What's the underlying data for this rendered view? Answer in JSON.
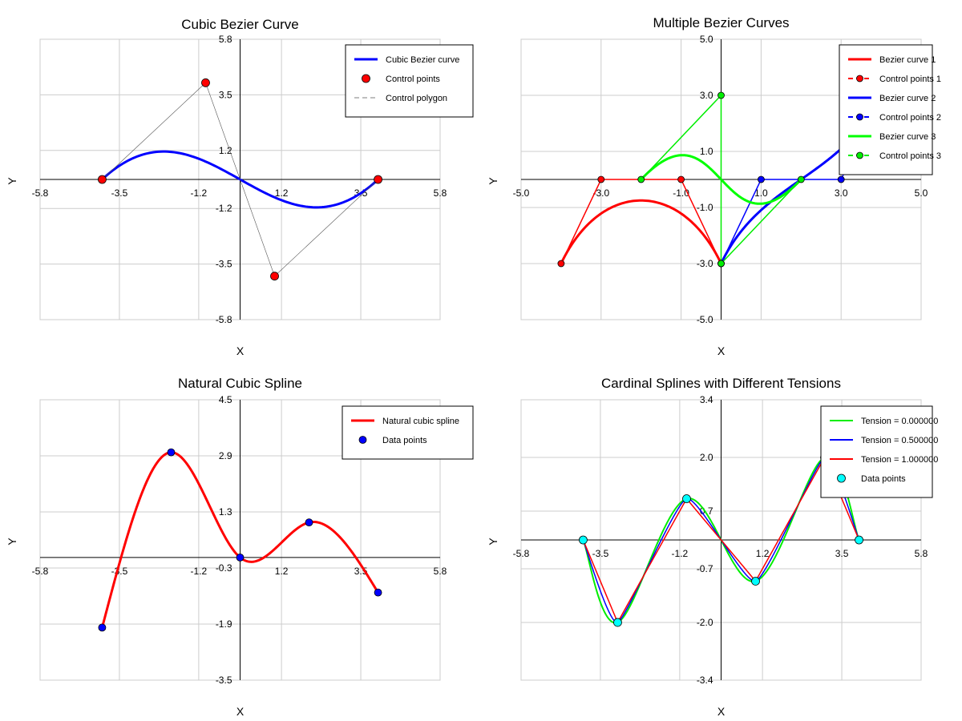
{
  "chart_data": [
    {
      "type": "line",
      "title": "Cubic Bezier Curve",
      "xlabel": "X",
      "ylabel": "Y",
      "xlim": [
        -5.8,
        5.8
      ],
      "ylim": [
        -5.8,
        5.8
      ],
      "xticks": [
        -5.8,
        -3.5,
        -1.2,
        1.2,
        3.5,
        5.8
      ],
      "yticks": [
        -5.8,
        -3.5,
        -1.2,
        1.2,
        3.5,
        5.8
      ],
      "xtick_labels": [
        "-5.8",
        "-3.5",
        "-1.2",
        "1.2",
        "3.5",
        "5.8"
      ],
      "ytick_labels": [
        "-5.8",
        "-3.5",
        "-1.2",
        "1.2",
        "3.5",
        "5.8"
      ],
      "grid": true,
      "legend_position": "top-right",
      "series": [
        {
          "name": "Cubic Bezier curve",
          "kind": "bezier",
          "control": [
            [
              -4,
              0
            ],
            [
              -1,
              4
            ],
            [
              1,
              -4
            ],
            [
              4,
              0
            ]
          ],
          "color": "#0000ff",
          "width": 3
        },
        {
          "name": "Control points",
          "kind": "markers",
          "points": [
            [
              -4,
              0
            ],
            [
              -1,
              4
            ],
            [
              1,
              -4
            ],
            [
              4,
              0
            ]
          ],
          "color": "#ff0000",
          "marker_radius": 5
        },
        {
          "name": "Control polygon",
          "kind": "polyline",
          "points": [
            [
              -4,
              0
            ],
            [
              -1,
              4
            ],
            [
              1,
              -4
            ],
            [
              4,
              0
            ]
          ],
          "color": "#555555",
          "width": 0.6,
          "dash": "6,4",
          "legend_only_dash": true
        }
      ]
    },
    {
      "type": "line",
      "title": "Multiple Bezier Curves",
      "xlabel": "X",
      "ylabel": "Y",
      "xlim": [
        -5.0,
        5.0
      ],
      "ylim": [
        -5.0,
        5.0
      ],
      "xticks": [
        -5.0,
        -3.0,
        -1.0,
        1.0,
        3.0,
        5.0
      ],
      "yticks": [
        -5.0,
        -3.0,
        -1.0,
        1.0,
        3.0,
        5.0
      ],
      "xtick_labels": [
        "-5.0",
        "-3.0",
        "-1.0",
        "1.0",
        "3.0",
        "5.0"
      ],
      "ytick_labels": [
        "-5.0",
        "-3.0",
        "-1.0",
        "1.0",
        "3.0",
        "5.0"
      ],
      "grid": true,
      "legend_position": "top-right",
      "series": [
        {
          "name": "Bezier curve 1",
          "kind": "bezier",
          "control": [
            [
              -4,
              -3
            ],
            [
              -3,
              0
            ],
            [
              -1,
              0
            ],
            [
              0,
              -3
            ]
          ],
          "color": "#ff0000",
          "width": 3
        },
        {
          "name": "Control points 1",
          "kind": "polyline_markers",
          "points": [
            [
              -4,
              -3
            ],
            [
              -3,
              0
            ],
            [
              -1,
              0
            ],
            [
              0,
              -3
            ]
          ],
          "color": "#ff0000",
          "width": 1.5,
          "dash": "6,4",
          "legend_only_dash": true,
          "marker_radius": 4
        },
        {
          "name": "Bezier curve 2",
          "kind": "bezier",
          "control": [
            [
              0,
              -3
            ],
            [
              1,
              0
            ],
            [
              3,
              0
            ],
            [
              4,
              3
            ]
          ],
          "color": "#0000ff",
          "width": 3
        },
        {
          "name": "Control points 2",
          "kind": "polyline_markers",
          "points": [
            [
              0,
              -3
            ],
            [
              1,
              0
            ],
            [
              3,
              0
            ],
            [
              4,
              3
            ]
          ],
          "color": "#0000ff",
          "width": 1.5,
          "dash": "6,4",
          "legend_only_dash": true,
          "marker_radius": 4
        },
        {
          "name": "Bezier curve 3",
          "kind": "bezier",
          "control": [
            [
              -2,
              0
            ],
            [
              0,
              3
            ],
            [
              0,
              -3
            ],
            [
              2,
              0
            ]
          ],
          "color": "#00ff00",
          "width": 3
        },
        {
          "name": "Control points 3",
          "kind": "polyline_markers",
          "points": [
            [
              -2,
              0
            ],
            [
              0,
              3
            ],
            [
              0,
              -3
            ],
            [
              2,
              0
            ]
          ],
          "color": "#00ee00",
          "width": 1.5,
          "dash": "6,4",
          "legend_only_dash": true,
          "marker_radius": 4
        }
      ]
    },
    {
      "type": "line",
      "title": "Natural Cubic Spline",
      "xlabel": "X",
      "ylabel": "Y",
      "xlim": [
        -5.8,
        5.8
      ],
      "ylim": [
        -3.5,
        4.5
      ],
      "xticks": [
        -5.8,
        -3.5,
        -1.2,
        1.2,
        3.5,
        5.8
      ],
      "yticks": [
        -3.5,
        -1.9,
        -0.3,
        1.3,
        2.9,
        4.5
      ],
      "xtick_labels": [
        "-5.8",
        "-3.5",
        "-1.2",
        "1.2",
        "3.5",
        "5.8"
      ],
      "ytick_labels": [
        "-3.5",
        "-1.9",
        "-0.3",
        "1.3",
        "2.9",
        "4.5"
      ],
      "grid": true,
      "legend_position": "top-right",
      "series": [
        {
          "name": "Natural cubic spline",
          "kind": "natural_spline",
          "points": [
            [
              -4,
              -2
            ],
            [
              -2,
              3
            ],
            [
              0,
              0
            ],
            [
              2,
              1
            ],
            [
              4,
              -1
            ]
          ],
          "color": "#ff0000",
          "width": 3
        },
        {
          "name": "Data points",
          "kind": "markers",
          "points": [
            [
              -4,
              -2
            ],
            [
              -2,
              3
            ],
            [
              0,
              0
            ],
            [
              2,
              1
            ],
            [
              4,
              -1
            ]
          ],
          "color": "#0000ff",
          "marker_radius": 4.5
        }
      ]
    },
    {
      "type": "line",
      "title": "Cardinal Splines with Different Tensions",
      "xlabel": "X",
      "ylabel": "Y",
      "xlim": [
        -5.8,
        5.8
      ],
      "ylim": [
        -3.4,
        3.4
      ],
      "xticks": [
        -5.8,
        -3.5,
        -1.2,
        1.2,
        3.5,
        5.8
      ],
      "yticks": [
        -3.4,
        -2.0,
        -0.7,
        0.7,
        2.0,
        3.4
      ],
      "xtick_labels": [
        "-5.8",
        "-3.5",
        "-1.2",
        "1.2",
        "3.5",
        "5.8"
      ],
      "ytick_labels": [
        "-3.4",
        "-2.0",
        "-0.7",
        "0.7",
        "2.0",
        "3.4"
      ],
      "grid": true,
      "legend_position": "top-right",
      "series": [
        {
          "name": "Tension = 0.000000",
          "kind": "cardinal",
          "tension": 0.0,
          "points": [
            [
              -4,
              0
            ],
            [
              -3,
              -2
            ],
            [
              -1,
              1
            ],
            [
              1,
              -1
            ],
            [
              3,
              2
            ],
            [
              4,
              0
            ]
          ],
          "color": "#00ee00",
          "width": 2
        },
        {
          "name": "Tension = 0.500000",
          "kind": "cardinal",
          "tension": 0.5,
          "points": [
            [
              -4,
              0
            ],
            [
              -3,
              -2
            ],
            [
              -1,
              1
            ],
            [
              1,
              -1
            ],
            [
              3,
              2
            ],
            [
              4,
              0
            ]
          ],
          "color": "#0000ff",
          "width": 1.5
        },
        {
          "name": "Tension = 1.000000",
          "kind": "cardinal",
          "tension": 1.0,
          "points": [
            [
              -4,
              0
            ],
            [
              -3,
              -2
            ],
            [
              -1,
              1
            ],
            [
              1,
              -1
            ],
            [
              3,
              2
            ],
            [
              4,
              0
            ]
          ],
          "color": "#ff0000",
          "width": 1.5
        },
        {
          "name": "Data points",
          "kind": "markers",
          "points": [
            [
              -4,
              0
            ],
            [
              -3,
              -2
            ],
            [
              -1,
              1
            ],
            [
              1,
              -1
            ],
            [
              3,
              2
            ],
            [
              4,
              0
            ]
          ],
          "color": "#00ffff",
          "marker_radius": 5
        }
      ]
    }
  ]
}
